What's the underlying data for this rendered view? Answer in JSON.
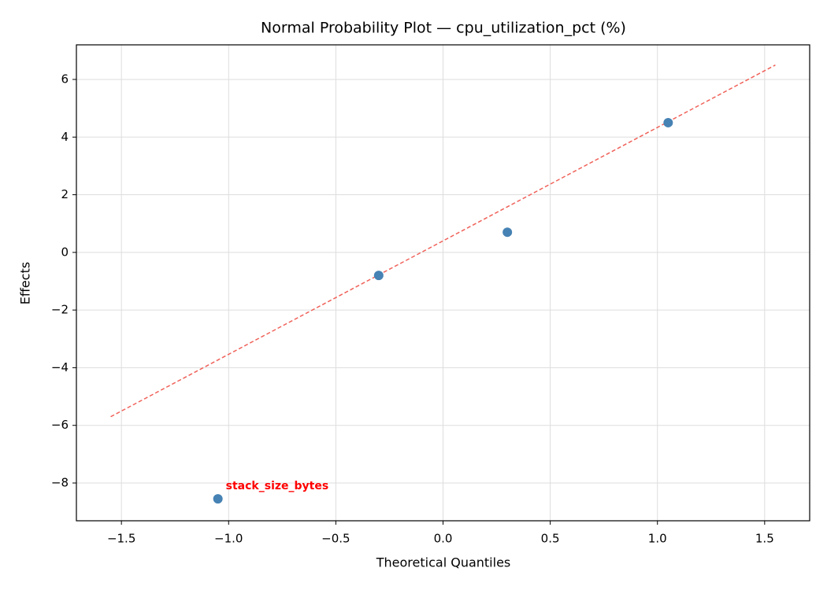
{
  "chart_data": {
    "type": "scatter",
    "title": "Normal Probability Plot — cpu_utilization_pct (%)",
    "x_label": "Theoretical Quantiles",
    "y_label": "Effects",
    "series": [
      {
        "color": "#4682b4",
        "x": [
          -1.05,
          -0.3,
          0.3,
          1.05
        ],
        "values": [
          -8.55,
          -0.8,
          0.7,
          4.5
        ],
        "point_labels": [
          "stack_size_bytes",
          null,
          null,
          null
        ],
        "point_label_color": "#ff0000"
      }
    ],
    "reference_line": {
      "x": [
        -1.55,
        1.55
      ],
      "y": [
        -5.7,
        6.5
      ],
      "color": "#f0625a",
      "dashed": true
    },
    "xlim": [
      -1.71,
      1.71
    ],
    "ylim": [
      -9.31,
      7.2
    ],
    "xticks": [
      {
        "value": -1.5,
        "label": "−1.5"
      },
      {
        "value": -1.0,
        "label": "−1.0"
      },
      {
        "value": -0.5,
        "label": "−0.5"
      },
      {
        "value": 0,
        "label": "0.0"
      },
      0.5,
      {
        "value": 1.0,
        "label": "1.0"
      },
      1.5
    ],
    "yticks": [
      {
        "value": -8,
        "label": "−8"
      },
      {
        "value": -6,
        "label": "−6"
      },
      {
        "value": -4,
        "label": "−4"
      },
      {
        "value": -2,
        "label": "−2"
      },
      0,
      2,
      4,
      6
    ],
    "grid": true
  }
}
